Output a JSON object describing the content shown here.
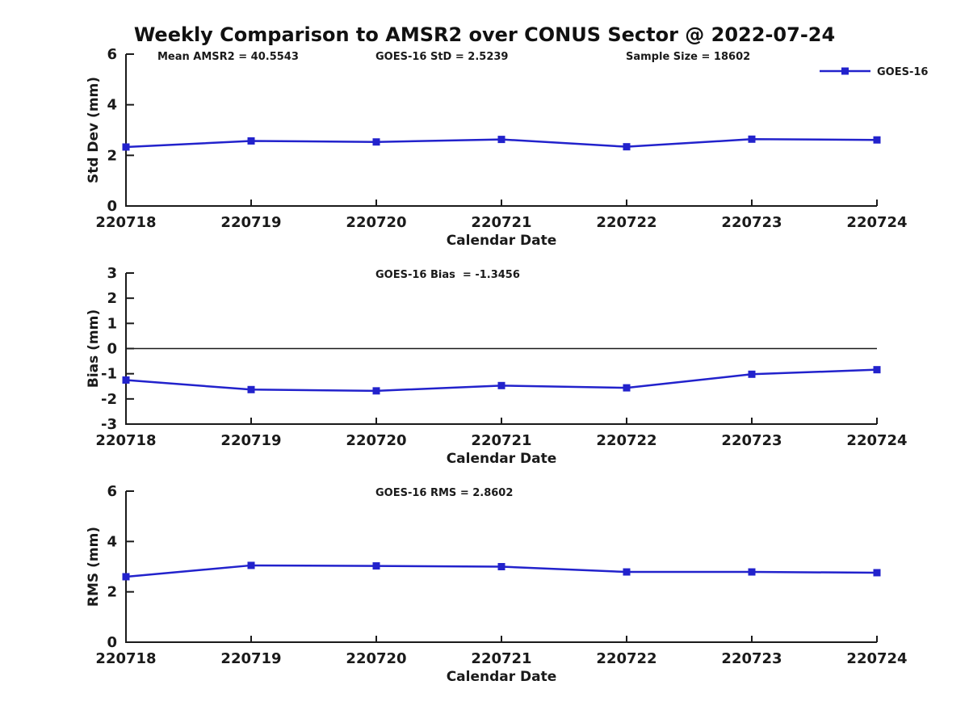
{
  "title": "Weekly Comparison to AMSR2 over CONUS Sector @ 2022-07-24",
  "colors": {
    "series": "#2222cc",
    "axis": "#1a1a1a",
    "text": "#1a1a1a",
    "background": "#ffffff"
  },
  "chart_data": [
    {
      "type": "line",
      "id": "stddev-panel",
      "ylabel": "Std Dev (mm)",
      "xlabel": "Calendar Date",
      "ylim": [
        0,
        6
      ],
      "yticks": [
        0,
        2,
        4,
        6
      ],
      "grid": false,
      "zero_line": false,
      "categories": [
        "220718",
        "220719",
        "220720",
        "220721",
        "220722",
        "220723",
        "220724"
      ],
      "series": [
        {
          "name": "GOES-16",
          "marker": "square",
          "values": [
            2.33,
            2.57,
            2.53,
            2.63,
            2.34,
            2.64,
            2.61
          ]
        }
      ],
      "annotations": [
        "Mean AMSR2 = 40.5543",
        "GOES-16 StD = 2.5239",
        "Sample Size = 18602"
      ],
      "legend": {
        "visible": true,
        "label": "GOES-16",
        "position": "top-right"
      }
    },
    {
      "type": "line",
      "id": "bias-panel",
      "ylabel": "Bias (mm)",
      "xlabel": "Calendar Date",
      "ylim": [
        -3,
        3
      ],
      "yticks": [
        -3,
        -2,
        -1,
        0,
        1,
        2,
        3
      ],
      "grid": false,
      "zero_line": true,
      "categories": [
        "220718",
        "220719",
        "220720",
        "220721",
        "220722",
        "220723",
        "220724"
      ],
      "series": [
        {
          "name": "GOES-16",
          "marker": "square",
          "values": [
            -1.25,
            -1.63,
            -1.68,
            -1.47,
            -1.56,
            -1.02,
            -0.84
          ]
        }
      ],
      "annotations": [
        "GOES-16 Bias  = -1.3456"
      ],
      "legend": {
        "visible": false,
        "label": "GOES-16",
        "position": "top-right"
      }
    },
    {
      "type": "line",
      "id": "rms-panel",
      "ylabel": "RMS (mm)",
      "xlabel": "Calendar Date",
      "ylim": [
        0,
        6
      ],
      "yticks": [
        0,
        2,
        4,
        6
      ],
      "grid": false,
      "zero_line": false,
      "categories": [
        "220718",
        "220719",
        "220720",
        "220721",
        "220722",
        "220723",
        "220724"
      ],
      "series": [
        {
          "name": "GOES-16",
          "marker": "square",
          "values": [
            2.6,
            3.05,
            3.03,
            3.0,
            2.79,
            2.79,
            2.76
          ]
        }
      ],
      "annotations": [
        "GOES-16 RMS = 2.8602"
      ],
      "legend": {
        "visible": false,
        "label": "GOES-16",
        "position": "top-right"
      }
    }
  ]
}
